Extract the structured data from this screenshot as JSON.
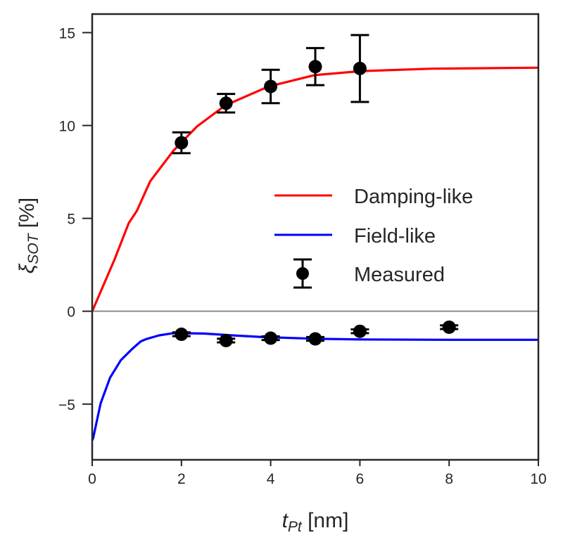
{
  "chart_data": {
    "type": "line",
    "title": "",
    "xlabel": "t_Pt [nm]",
    "xlabel_main": "t",
    "xlabel_sub": "Pt",
    "xlabel_unit": " [nm]",
    "ylabel": "ξ_SOT [%]",
    "ylabel_main": "ξ",
    "ylabel_sub": "SOT",
    "ylabel_unit": " [%]",
    "xlim": [
      0,
      10
    ],
    "ylim": [
      -8,
      16
    ],
    "xticks": [
      0,
      2,
      4,
      6,
      8,
      10
    ],
    "yticks": [
      -5,
      0,
      5,
      10,
      15
    ],
    "xtick_labels": [
      "0",
      "2",
      "4",
      "6",
      "8",
      "10"
    ],
    "ytick_labels": [
      "−5",
      "0",
      "5",
      "10",
      "15"
    ],
    "grid": false,
    "zero_line": true,
    "legend_position": "center-right",
    "series": [
      {
        "name": "Damping-like",
        "kind": "line",
        "color": "#ff0000",
        "x": [
          0,
          0.5,
          0.82,
          1.0,
          1.3,
          1.82,
          2.35,
          2.98,
          3.93,
          4.19,
          4.98,
          6.03,
          7.61,
          9.92,
          10
        ],
        "y": [
          0,
          2.78,
          4.75,
          5.4,
          7.0,
          8.64,
          9.95,
          11.08,
          12.08,
          12.24,
          12.71,
          12.93,
          13.06,
          13.11,
          13.11
        ]
      },
      {
        "name": "Field-like",
        "kind": "line",
        "color": "#0000ff",
        "x": [
          0,
          0.02,
          0.19,
          0.4,
          0.64,
          0.9,
          1.09,
          1.21,
          1.5,
          1.82,
          2.5,
          3.14,
          3.82,
          5,
          6,
          8,
          10
        ],
        "y": [
          -6.95,
          -6.84,
          -4.96,
          -3.58,
          -2.64,
          -2.02,
          -1.62,
          -1.5,
          -1.3,
          -1.18,
          -1.2,
          -1.3,
          -1.39,
          -1.48,
          -1.52,
          -1.54,
          -1.54
        ]
      },
      {
        "name": "Measured",
        "kind": "errorbar",
        "color": "#000000",
        "points": [
          {
            "x": 2,
            "y": 9.07,
            "err": 0.56
          },
          {
            "x": 3,
            "y": 11.2,
            "err": 0.5
          },
          {
            "x": 4,
            "y": 12.1,
            "err": 0.9
          },
          {
            "x": 5,
            "y": 13.17,
            "err": 1.0
          },
          {
            "x": 6,
            "y": 13.07,
            "err": 1.8
          },
          {
            "x": 2,
            "y": -1.24,
            "err": 0.1
          },
          {
            "x": 3,
            "y": -1.58,
            "err": 0.1
          },
          {
            "x": 4,
            "y": -1.45,
            "err": 0.1
          },
          {
            "x": 5,
            "y": -1.49,
            "err": 0.1
          },
          {
            "x": 6,
            "y": -1.08,
            "err": 0.1
          },
          {
            "x": 8,
            "y": -0.86,
            "err": 0.1
          }
        ]
      }
    ],
    "legend": [
      "Damping-like",
      "Field-like",
      "Measured"
    ]
  }
}
